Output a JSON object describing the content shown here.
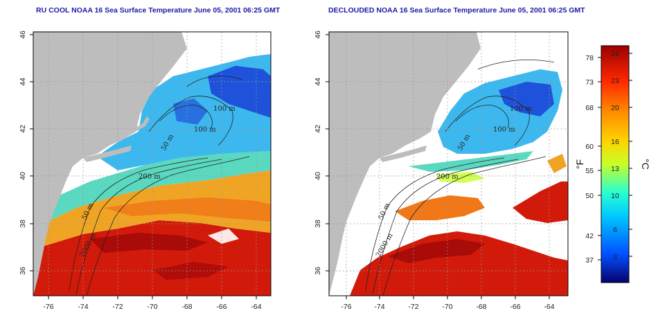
{
  "titles": {
    "left": "RU COOL NOAA 16 Sea Surface Temperature June 05, 2001 06:25 GMT",
    "right": "DECLOUDED NOAA 16 Sea Surface Temperature June 05, 2001 06:25 GMT"
  },
  "axes": {
    "lon_ticks": [
      "-76",
      "-74",
      "-72",
      "-70",
      "-68",
      "-66",
      "-64"
    ],
    "lat_ticks": [
      "46",
      "44",
      "42",
      "40",
      "38",
      "36"
    ]
  },
  "contour_labels": {
    "isobath_100_north": "100 m",
    "isobath_100_mid": "100 m",
    "isobath_50": "50 m",
    "isobath_200": "200 m",
    "isobath_50_south": "50 m",
    "isobath_2000": "2000 m"
  },
  "colorbar": {
    "fahrenheit_label": "°F",
    "celsius_label": "°C",
    "fahrenheit_ticks": [
      "78",
      "73",
      "68",
      "60",
      "55",
      "50",
      "42",
      "37"
    ],
    "celsius_ticks": [
      "26",
      "23",
      "20",
      "16",
      "13",
      "10",
      "6",
      "3"
    ],
    "colors": [
      "#08006e",
      "#0050ff",
      "#00c8ff",
      "#28ffd0",
      "#c8ff28",
      "#ffd200",
      "#ff8c00",
      "#ff2800",
      "#9b0000"
    ]
  },
  "map_colors": {
    "land": "#bdbdbd",
    "cloud": "#ffffff",
    "gulf_maine": "#3db8ee",
    "deep_cold": "#1a3fd6",
    "shelf_green": "#5ad8c0",
    "slope_water": "#f0a424",
    "warm_band": "#f07818",
    "gulf_stream": "#d21a0a",
    "gulf_stream_core": "#9e0808"
  }
}
